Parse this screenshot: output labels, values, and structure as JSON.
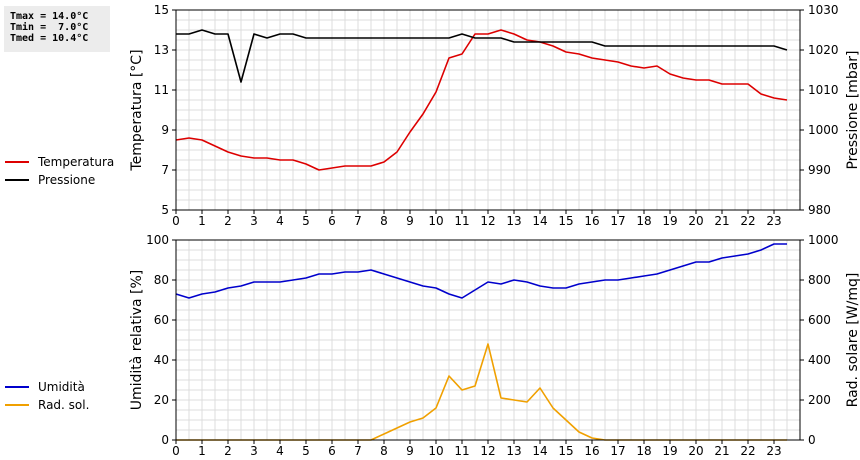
{
  "stats": [
    "Tmax = 14.0°C",
    "Tmin =  7.0°C",
    "Tmed = 10.4°C"
  ],
  "chart_data": [
    {
      "type": "line",
      "ylabel": "Temperatura [°C]",
      "y2label": "Pressione [mbar]",
      "xlim": [
        0,
        24
      ],
      "ylim": [
        5,
        15
      ],
      "y2lim": [
        980,
        1030
      ],
      "xticks": [
        0,
        1,
        2,
        3,
        4,
        5,
        6,
        7,
        8,
        9,
        10,
        11,
        12,
        13,
        14,
        15,
        16,
        17,
        18,
        19,
        20,
        21,
        22,
        23
      ],
      "yticks": [
        5,
        7,
        9,
        11,
        13,
        15
      ],
      "y2ticks": [
        980,
        990,
        1000,
        1010,
        1020,
        1030
      ],
      "grid": true,
      "legend_position": "left",
      "series": [
        {
          "name": "Temperatura",
          "color": "#dd0000",
          "axis": "left",
          "points": [
            [
              0,
              8.5
            ],
            [
              0.5,
              8.6
            ],
            [
              1,
              8.5
            ],
            [
              1.5,
              8.2
            ],
            [
              2,
              7.9
            ],
            [
              2.5,
              7.7
            ],
            [
              3,
              7.6
            ],
            [
              3.5,
              7.6
            ],
            [
              4,
              7.5
            ],
            [
              4.5,
              7.5
            ],
            [
              5,
              7.3
            ],
            [
              5.5,
              7.0
            ],
            [
              6,
              7.1
            ],
            [
              6.5,
              7.2
            ],
            [
              7,
              7.2
            ],
            [
              7.5,
              7.2
            ],
            [
              8,
              7.4
            ],
            [
              8.5,
              7.9
            ],
            [
              9,
              8.9
            ],
            [
              9.5,
              9.8
            ],
            [
              10,
              10.9
            ],
            [
              10.5,
              12.6
            ],
            [
              11,
              12.8
            ],
            [
              11.5,
              13.8
            ],
            [
              12,
              13.8
            ],
            [
              12.5,
              14.0
            ],
            [
              13,
              13.8
            ],
            [
              13.5,
              13.5
            ],
            [
              14,
              13.4
            ],
            [
              14.5,
              13.2
            ],
            [
              15,
              12.9
            ],
            [
              15.5,
              12.8
            ],
            [
              16,
              12.6
            ],
            [
              16.5,
              12.5
            ],
            [
              17,
              12.4
            ],
            [
              17.5,
              12.2
            ],
            [
              18,
              12.1
            ],
            [
              18.5,
              12.2
            ],
            [
              19,
              11.8
            ],
            [
              19.5,
              11.6
            ],
            [
              20,
              11.5
            ],
            [
              20.5,
              11.5
            ],
            [
              21,
              11.3
            ],
            [
              21.5,
              11.3
            ],
            [
              22,
              11.3
            ],
            [
              22.5,
              10.8
            ],
            [
              23,
              10.6
            ],
            [
              23.5,
              10.5
            ]
          ]
        },
        {
          "name": "Pressione",
          "color": "#000000",
          "axis": "right",
          "points": [
            [
              0,
              1024
            ],
            [
              0.5,
              1024
            ],
            [
              1,
              1025
            ],
            [
              1.5,
              1024
            ],
            [
              2,
              1024
            ],
            [
              2.5,
              1012
            ],
            [
              3,
              1024
            ],
            [
              3.5,
              1023
            ],
            [
              4,
              1024
            ],
            [
              4.5,
              1024
            ],
            [
              5,
              1023
            ],
            [
              6,
              1023
            ],
            [
              7,
              1023
            ],
            [
              8,
              1023
            ],
            [
              9,
              1023
            ],
            [
              10,
              1023
            ],
            [
              10.5,
              1023
            ],
            [
              11,
              1024
            ],
            [
              11.5,
              1023
            ],
            [
              12,
              1023
            ],
            [
              12.5,
              1023
            ],
            [
              13,
              1022
            ],
            [
              14,
              1022
            ],
            [
              15,
              1022
            ],
            [
              16,
              1022
            ],
            [
              16.5,
              1021
            ],
            [
              17,
              1021
            ],
            [
              18,
              1021
            ],
            [
              19,
              1021
            ],
            [
              20,
              1021
            ],
            [
              21,
              1021
            ],
            [
              22,
              1021
            ],
            [
              23,
              1021
            ],
            [
              23.5,
              1020
            ]
          ]
        }
      ]
    },
    {
      "type": "line",
      "ylabel": "Umidità relativa [%]",
      "y2label": "Rad. solare [W/mq]",
      "xlim": [
        0,
        24
      ],
      "ylim": [
        0,
        100
      ],
      "y2lim": [
        0,
        1000
      ],
      "xticks": [
        0,
        1,
        2,
        3,
        4,
        5,
        6,
        7,
        8,
        9,
        10,
        11,
        12,
        13,
        14,
        15,
        16,
        17,
        18,
        19,
        20,
        21,
        22,
        23
      ],
      "yticks": [
        0,
        20,
        40,
        60,
        80,
        100
      ],
      "y2ticks": [
        0,
        200,
        400,
        600,
        800,
        1000
      ],
      "grid": true,
      "legend_position": "left",
      "series": [
        {
          "name": "Umidità",
          "color": "#0000cc",
          "axis": "left",
          "points": [
            [
              0,
              73
            ],
            [
              0.5,
              71
            ],
            [
              1,
              73
            ],
            [
              1.5,
              74
            ],
            [
              2,
              76
            ],
            [
              2.5,
              77
            ],
            [
              3,
              79
            ],
            [
              3.5,
              79
            ],
            [
              4,
              79
            ],
            [
              4.5,
              80
            ],
            [
              5,
              81
            ],
            [
              5.5,
              83
            ],
            [
              6,
              83
            ],
            [
              6.5,
              84
            ],
            [
              7,
              84
            ],
            [
              7.5,
              85
            ],
            [
              8,
              83
            ],
            [
              8.5,
              81
            ],
            [
              9,
              79
            ],
            [
              9.5,
              77
            ],
            [
              10,
              76
            ],
            [
              10.5,
              73
            ],
            [
              11,
              71
            ],
            [
              11.5,
              75
            ],
            [
              12,
              79
            ],
            [
              12.5,
              78
            ],
            [
              13,
              80
            ],
            [
              13.5,
              79
            ],
            [
              14,
              77
            ],
            [
              14.5,
              76
            ],
            [
              15,
              76
            ],
            [
              15.5,
              78
            ],
            [
              16,
              79
            ],
            [
              16.5,
              80
            ],
            [
              17,
              80
            ],
            [
              17.5,
              81
            ],
            [
              18,
              82
            ],
            [
              18.5,
              83
            ],
            [
              19,
              85
            ],
            [
              19.5,
              87
            ],
            [
              20,
              89
            ],
            [
              20.5,
              89
            ],
            [
              21,
              91
            ],
            [
              21.5,
              92
            ],
            [
              22,
              93
            ],
            [
              22.5,
              95
            ],
            [
              23,
              98
            ],
            [
              23.5,
              98
            ]
          ]
        },
        {
          "name": "Rad. sol.",
          "color": "#f0a000",
          "axis": "right",
          "points": [
            [
              0,
              0
            ],
            [
              7.5,
              0
            ],
            [
              8,
              30
            ],
            [
              8.5,
              60
            ],
            [
              9,
              90
            ],
            [
              9.5,
              110
            ],
            [
              10,
              160
            ],
            [
              10.5,
              320
            ],
            [
              11,
              250
            ],
            [
              11.5,
              270
            ],
            [
              12,
              480
            ],
            [
              12.5,
              210
            ],
            [
              13,
              200
            ],
            [
              13.5,
              190
            ],
            [
              14,
              260
            ],
            [
              14.5,
              160
            ],
            [
              15,
              100
            ],
            [
              15.5,
              40
            ],
            [
              16,
              10
            ],
            [
              16.5,
              0
            ],
            [
              23.5,
              0
            ]
          ]
        }
      ]
    }
  ]
}
